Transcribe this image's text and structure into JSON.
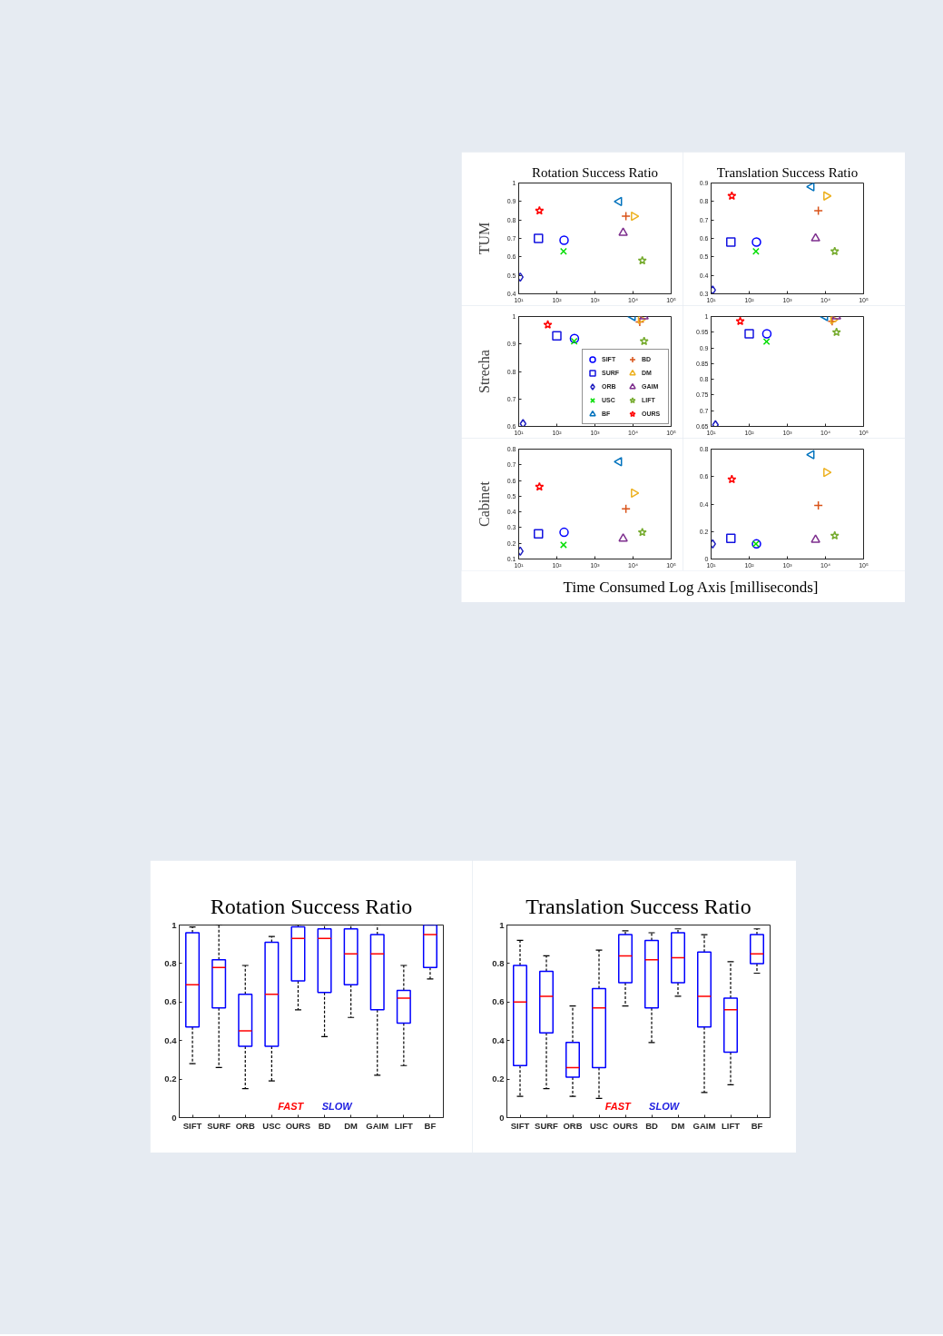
{
  "chart_data": [
    {
      "type": "scatter",
      "title": "Rotation Success Ratio",
      "ylabel": "TUM",
      "log": "x",
      "xlim": [
        10,
        100000
      ],
      "xticks": [
        {
          "value": 10,
          "label": "10¹"
        },
        {
          "value": 100,
          "label": "10²"
        },
        {
          "value": 1000,
          "label": "10³"
        },
        {
          "value": 10000,
          "label": "10⁴"
        },
        {
          "value": 100000,
          "label": "10⁵"
        }
      ],
      "ylim": [
        0.4,
        1
      ],
      "yticks": [
        0.4,
        0.5,
        0.6,
        0.7,
        0.8,
        0.9,
        1
      ],
      "series": [
        {
          "color": "#0000ff",
          "marker": "circle",
          "x": [
            155
          ],
          "values": [
            0.69
          ]
        },
        {
          "color": "#1414e0",
          "marker": "square",
          "x": [
            33
          ],
          "values": [
            0.7
          ]
        },
        {
          "color": "#2020c0",
          "marker": "diamond",
          "x": [
            11
          ],
          "values": [
            0.49
          ]
        },
        {
          "color": "#00dd00",
          "marker": "x",
          "x": [
            150
          ],
          "values": [
            0.63
          ]
        },
        {
          "color": "#0072bd",
          "marker": "triangle-left",
          "x": [
            4300
          ],
          "values": [
            0.9
          ]
        },
        {
          "color": "#d95319",
          "marker": "cross",
          "x": [
            6500
          ],
          "values": [
            0.82
          ]
        },
        {
          "color": "#edb120",
          "marker": "triangle-right",
          "x": [
            10500
          ],
          "values": [
            0.82
          ]
        },
        {
          "color": "#7e2f8e",
          "marker": "triangle",
          "x": [
            5500
          ],
          "values": [
            0.73
          ]
        },
        {
          "color": "#77ac30",
          "marker": "star",
          "x": [
            17500
          ],
          "values": [
            0.58
          ]
        },
        {
          "color": "#ff0000",
          "marker": "star",
          "x": [
            35
          ],
          "values": [
            0.85
          ]
        }
      ]
    },
    {
      "type": "scatter",
      "title": "Translation Success Ratio",
      "log": "x",
      "xlim": [
        10,
        100000
      ],
      "xticks": [
        {
          "value": 10,
          "label": "10¹"
        },
        {
          "value": 100,
          "label": "10²"
        },
        {
          "value": 1000,
          "label": "10³"
        },
        {
          "value": 10000,
          "label": "10⁴"
        },
        {
          "value": 100000,
          "label": "10⁵"
        }
      ],
      "ylim": [
        0.3,
        0.9
      ],
      "yticks": [
        0.3,
        0.4,
        0.5,
        0.6,
        0.7,
        0.8,
        0.9
      ],
      "series": [
        {
          "color": "#0000ff",
          "marker": "circle",
          "x": [
            155
          ],
          "values": [
            0.58
          ]
        },
        {
          "color": "#1414e0",
          "marker": "square",
          "x": [
            33
          ],
          "values": [
            0.58
          ]
        },
        {
          "color": "#2020c0",
          "marker": "diamond",
          "x": [
            11
          ],
          "values": [
            0.32
          ]
        },
        {
          "color": "#00dd00",
          "marker": "x",
          "x": [
            150
          ],
          "values": [
            0.53
          ]
        },
        {
          "color": "#0072bd",
          "marker": "triangle-left",
          "x": [
            4300
          ],
          "values": [
            0.88
          ]
        },
        {
          "color": "#d95319",
          "marker": "cross",
          "x": [
            6500
          ],
          "values": [
            0.75
          ]
        },
        {
          "color": "#edb120",
          "marker": "triangle-right",
          "x": [
            10500
          ],
          "values": [
            0.83
          ]
        },
        {
          "color": "#7e2f8e",
          "marker": "triangle",
          "x": [
            5500
          ],
          "values": [
            0.6
          ]
        },
        {
          "color": "#77ac30",
          "marker": "star",
          "x": [
            17500
          ],
          "values": [
            0.53
          ]
        },
        {
          "color": "#ff0000",
          "marker": "star",
          "x": [
            35
          ],
          "values": [
            0.83
          ]
        }
      ]
    },
    {
      "type": "scatter",
      "ylabel": "Strecha",
      "log": "x",
      "legend": "bottom right",
      "xlim": [
        10,
        100000
      ],
      "xticks": [
        {
          "value": 10,
          "label": "10¹"
        },
        {
          "value": 100,
          "label": "10²"
        },
        {
          "value": 1000,
          "label": "10³"
        },
        {
          "value": 10000,
          "label": "10⁴"
        },
        {
          "value": 100000,
          "label": "10⁵"
        }
      ],
      "ylim": [
        0.6,
        1
      ],
      "yticks": [
        0.6,
        0.7,
        0.8,
        0.9,
        1
      ],
      "series": [
        {
          "name": "SIFT",
          "color": "#0000ff",
          "marker": "circle",
          "x": [
            290
          ],
          "values": [
            0.92
          ]
        },
        {
          "name": "SURF",
          "color": "#1414e0",
          "marker": "square",
          "x": [
            100
          ],
          "values": [
            0.93
          ]
        },
        {
          "name": "ORB",
          "color": "#2020c0",
          "marker": "diamond",
          "x": [
            13
          ],
          "values": [
            0.61
          ]
        },
        {
          "name": "USC",
          "color": "#00dd00",
          "marker": "x",
          "x": [
            285
          ],
          "values": [
            0.91
          ]
        },
        {
          "name": "BF",
          "color": "#0072bd",
          "marker": "triangle-left",
          "x": [
            9800
          ],
          "values": [
            1
          ]
        },
        {
          "name": "BD",
          "color": "#d95319",
          "marker": "cross",
          "x": [
            15000
          ],
          "values": [
            0.98
          ]
        },
        {
          "name": "DM",
          "color": "#edb120",
          "marker": "triangle-right",
          "x": [
            16000
          ],
          "values": [
            0.99
          ]
        },
        {
          "name": "GAIM",
          "color": "#7e2f8e",
          "marker": "triangle",
          "x": [
            19500
          ],
          "values": [
            1
          ]
        },
        {
          "name": "LIFT",
          "color": "#77ac30",
          "marker": "star",
          "x": [
            19500
          ],
          "values": [
            0.91
          ]
        },
        {
          "name": "OURS",
          "color": "#ff0000",
          "marker": "star",
          "x": [
            58
          ],
          "values": [
            0.97
          ]
        }
      ]
    },
    {
      "type": "scatter",
      "log": "x",
      "xlim": [
        10,
        100000
      ],
      "xticks": [
        {
          "value": 10,
          "label": "10¹"
        },
        {
          "value": 100,
          "label": "10²"
        },
        {
          "value": 1000,
          "label": "10³"
        },
        {
          "value": 10000,
          "label": "10⁴"
        },
        {
          "value": 100000,
          "label": "10⁵"
        }
      ],
      "ylim": [
        0.65,
        1
      ],
      "yticks": [
        0.65,
        0.7,
        0.75,
        0.8,
        0.85,
        0.9,
        0.95,
        1
      ],
      "series": [
        {
          "color": "#0000ff",
          "marker": "circle",
          "x": [
            290
          ],
          "values": [
            0.945
          ]
        },
        {
          "color": "#1414e0",
          "marker": "square",
          "x": [
            100
          ],
          "values": [
            0.945
          ]
        },
        {
          "color": "#2020c0",
          "marker": "diamond",
          "x": [
            13
          ],
          "values": [
            0.655
          ]
        },
        {
          "color": "#00dd00",
          "marker": "x",
          "x": [
            285
          ],
          "values": [
            0.92
          ]
        },
        {
          "color": "#0072bd",
          "marker": "triangle-left",
          "x": [
            9800
          ],
          "values": [
            1
          ]
        },
        {
          "color": "#d95319",
          "marker": "cross",
          "x": [
            15000
          ],
          "values": [
            0.985
          ]
        },
        {
          "color": "#edb120",
          "marker": "triangle-right",
          "x": [
            16000
          ],
          "values": [
            0.99
          ]
        },
        {
          "color": "#7e2f8e",
          "marker": "triangle",
          "x": [
            19500
          ],
          "values": [
            1
          ]
        },
        {
          "color": "#77ac30",
          "marker": "star",
          "x": [
            19500
          ],
          "values": [
            0.95
          ]
        },
        {
          "color": "#ff0000",
          "marker": "star",
          "x": [
            58
          ],
          "values": [
            0.985
          ]
        }
      ]
    },
    {
      "type": "scatter",
      "ylabel": "Cabinet",
      "xlabel": "Time Consumed Log Axis [milliseconds]",
      "log": "x",
      "xlim": [
        10,
        100000
      ],
      "xticks": [
        {
          "value": 10,
          "label": "10¹"
        },
        {
          "value": 100,
          "label": "10²"
        },
        {
          "value": 1000,
          "label": "10³"
        },
        {
          "value": 10000,
          "label": "10⁴"
        },
        {
          "value": 100000,
          "label": "10⁵"
        }
      ],
      "ylim": [
        0.1,
        0.8
      ],
      "yticks": [
        0.1,
        0.2,
        0.3,
        0.4,
        0.5,
        0.6,
        0.7,
        0.8
      ],
      "series": [
        {
          "color": "#0000ff",
          "marker": "circle",
          "x": [
            155
          ],
          "values": [
            0.27
          ]
        },
        {
          "color": "#1414e0",
          "marker": "square",
          "x": [
            33
          ],
          "values": [
            0.26
          ]
        },
        {
          "color": "#2020c0",
          "marker": "diamond",
          "x": [
            11
          ],
          "values": [
            0.15
          ]
        },
        {
          "color": "#00dd00",
          "marker": "x",
          "x": [
            150
          ],
          "values": [
            0.19
          ]
        },
        {
          "color": "#0072bd",
          "marker": "triangle-left",
          "x": [
            4300
          ],
          "values": [
            0.72
          ]
        },
        {
          "color": "#d95319",
          "marker": "cross",
          "x": [
            6500
          ],
          "values": [
            0.42
          ]
        },
        {
          "color": "#edb120",
          "marker": "triangle-right",
          "x": [
            10500
          ],
          "values": [
            0.52
          ]
        },
        {
          "color": "#7e2f8e",
          "marker": "triangle",
          "x": [
            5500
          ],
          "values": [
            0.23
          ]
        },
        {
          "color": "#77ac30",
          "marker": "star",
          "x": [
            17500
          ],
          "values": [
            0.27
          ]
        },
        {
          "color": "#ff0000",
          "marker": "star",
          "x": [
            35
          ],
          "values": [
            0.56
          ]
        }
      ]
    },
    {
      "type": "scatter",
      "log": "x",
      "xlim": [
        10,
        100000
      ],
      "xticks": [
        {
          "value": 10,
          "label": "10¹"
        },
        {
          "value": 100,
          "label": "10²"
        },
        {
          "value": 1000,
          "label": "10³"
        },
        {
          "value": 10000,
          "label": "10⁴"
        },
        {
          "value": 100000,
          "label": "10⁵"
        }
      ],
      "ylim": [
        0,
        0.8
      ],
      "yticks": [
        0,
        0.2,
        0.4,
        0.6,
        0.8
      ],
      "series": [
        {
          "color": "#0000ff",
          "marker": "circle",
          "x": [
            155
          ],
          "values": [
            0.11
          ]
        },
        {
          "color": "#1414e0",
          "marker": "square",
          "x": [
            33
          ],
          "values": [
            0.15
          ]
        },
        {
          "color": "#2020c0",
          "marker": "diamond",
          "x": [
            11
          ],
          "values": [
            0.11
          ]
        },
        {
          "color": "#00dd00",
          "marker": "x",
          "x": [
            150
          ],
          "values": [
            0.11
          ]
        },
        {
          "color": "#0072bd",
          "marker": "triangle-left",
          "x": [
            4300
          ],
          "values": [
            0.76
          ]
        },
        {
          "color": "#d95319",
          "marker": "cross",
          "x": [
            6500
          ],
          "values": [
            0.39
          ]
        },
        {
          "color": "#edb120",
          "marker": "triangle-right",
          "x": [
            10500
          ],
          "values": [
            0.63
          ]
        },
        {
          "color": "#7e2f8e",
          "marker": "triangle",
          "x": [
            5500
          ],
          "values": [
            0.14
          ]
        },
        {
          "color": "#77ac30",
          "marker": "star",
          "x": [
            17500
          ],
          "values": [
            0.17
          ]
        },
        {
          "color": "#ff0000",
          "marker": "star",
          "x": [
            35
          ],
          "values": [
            0.58
          ]
        }
      ]
    },
    {
      "type": "box",
      "title": "Rotation Success Ratio",
      "categories": [
        "SIFT",
        "SURF",
        "ORB",
        "USC",
        "OURS",
        "BD",
        "DM",
        "GAIM",
        "LIFT",
        "BF"
      ],
      "ylim": [
        0,
        1
      ],
      "yticks": [
        0,
        0.2,
        0.4,
        0.6,
        0.8,
        1
      ],
      "annotations": [
        "FAST",
        "SLOW"
      ],
      "series": [
        {
          "color": "#0000ff",
          "boxes": [
            {
              "low": 0.28,
              "q1": 0.47,
              "median": 0.69,
              "q3": 0.96,
              "high": 0.99
            },
            {
              "low": 0.26,
              "q1": 0.57,
              "median": 0.78,
              "q3": 0.82,
              "high": 1
            },
            {
              "low": 0.15,
              "q1": 0.37,
              "median": 0.45,
              "q3": 0.64,
              "high": 0.79
            },
            {
              "low": 0.19,
              "q1": 0.37,
              "median": 0.64,
              "q3": 0.91,
              "high": 0.94
            },
            {
              "low": 0.56,
              "q1": 0.71,
              "median": 0.93,
              "q3": 0.99,
              "high": 1
            },
            {
              "low": 0.42,
              "q1": 0.65,
              "median": 0.93,
              "q3": 0.98,
              "high": 1
            },
            {
              "low": 0.52,
              "q1": 0.69,
              "median": 0.85,
              "q3": 0.98,
              "high": 1
            },
            {
              "low": 0.22,
              "q1": 0.56,
              "median": 0.85,
              "q3": 0.95,
              "high": 1
            },
            {
              "low": 0.27,
              "q1": 0.49,
              "median": 0.62,
              "q3": 0.66,
              "high": 0.79
            },
            {
              "low": 0.72,
              "q1": 0.78,
              "median": 0.95,
              "q3": 1,
              "high": 1
            }
          ]
        }
      ]
    },
    {
      "type": "box",
      "title": "Translation Success Ratio",
      "categories": [
        "SIFT",
        "SURF",
        "ORB",
        "USC",
        "OURS",
        "BD",
        "DM",
        "GAIM",
        "LIFT",
        "BF"
      ],
      "ylim": [
        0,
        1
      ],
      "yticks": [
        0,
        0.2,
        0.4,
        0.6,
        0.8,
        1
      ],
      "annotations": [
        "FAST",
        "SLOW"
      ],
      "series": [
        {
          "color": "#0000ff",
          "boxes": [
            {
              "low": 0.11,
              "q1": 0.27,
              "median": 0.6,
              "q3": 0.79,
              "high": 0.92
            },
            {
              "low": 0.15,
              "q1": 0.44,
              "median": 0.63,
              "q3": 0.76,
              "high": 0.84
            },
            {
              "low": 0.11,
              "q1": 0.21,
              "median": 0.26,
              "q3": 0.39,
              "high": 0.58
            },
            {
              "low": 0.1,
              "q1": 0.26,
              "median": 0.57,
              "q3": 0.67,
              "high": 0.87
            },
            {
              "low": 0.58,
              "q1": 0.7,
              "median": 0.84,
              "q3": 0.95,
              "high": 0.97
            },
            {
              "low": 0.39,
              "q1": 0.57,
              "median": 0.82,
              "q3": 0.92,
              "high": 0.96
            },
            {
              "low": 0.63,
              "q1": 0.7,
              "median": 0.83,
              "q3": 0.96,
              "high": 0.98
            },
            {
              "low": 0.13,
              "q1": 0.47,
              "median": 0.63,
              "q3": 0.86,
              "high": 0.95
            },
            {
              "low": 0.17,
              "q1": 0.34,
              "median": 0.56,
              "q3": 0.62,
              "high": 0.81
            },
            {
              "low": 0.75,
              "q1": 0.8,
              "median": 0.85,
              "q3": 0.95,
              "high": 0.98
            }
          ]
        }
      ]
    }
  ]
}
